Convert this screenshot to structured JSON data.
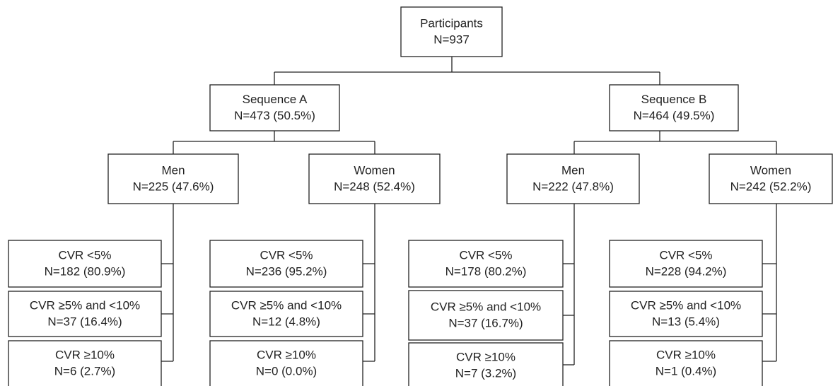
{
  "nodes": [
    {
      "lines": [
        "Participants",
        "N=937"
      ]
    },
    {
      "lines": [
        "Sequence A",
        "N=473 (50.5%)"
      ]
    },
    {
      "lines": [
        "Sequence B",
        "N=464 (49.5%)"
      ]
    },
    {
      "lines": [
        "Men",
        "N=225 (47.6%)"
      ]
    },
    {
      "lines": [
        "Women",
        "N=248 (52.4%)"
      ]
    },
    {
      "lines": [
        "Men",
        "N=222 (47.8%)"
      ]
    },
    {
      "lines": [
        "Women",
        "N=242 (52.2%)"
      ]
    },
    {
      "lines": [
        "CVR <5%",
        "N=182 (80.9%)"
      ]
    },
    {
      "lines": [
        "CVR ≥5% and <10%",
        "N=37 (16.4%)"
      ]
    },
    {
      "lines": [
        "CVR ≥10%",
        "N=6 (2.7%)"
      ]
    },
    {
      "lines": [
        "CVR <5%",
        "N=236 (95.2%)"
      ]
    },
    {
      "lines": [
        "CVR ≥5% and <10%",
        "N=12 (4.8%)"
      ]
    },
    {
      "lines": [
        "CVR ≥10%",
        "N=0 (0.0%)"
      ]
    },
    {
      "lines": [
        "CVR <5%",
        "N=178 (80.2%)"
      ]
    },
    {
      "lines": [
        "CVR ≥5% and <10%",
        "N=37 (16.7%)"
      ]
    },
    {
      "lines": [
        "CVR ≥10%",
        "N=7 (3.2%)"
      ]
    },
    {
      "lines": [
        "CVR <5%",
        "N=228 (94.2%)"
      ]
    },
    {
      "lines": [
        "CVR ≥5% and <10%",
        "N=13 (5.4%)"
      ]
    },
    {
      "lines": [
        "CVR ≥10%",
        "N=1 (0.4%)"
      ]
    }
  ]
}
